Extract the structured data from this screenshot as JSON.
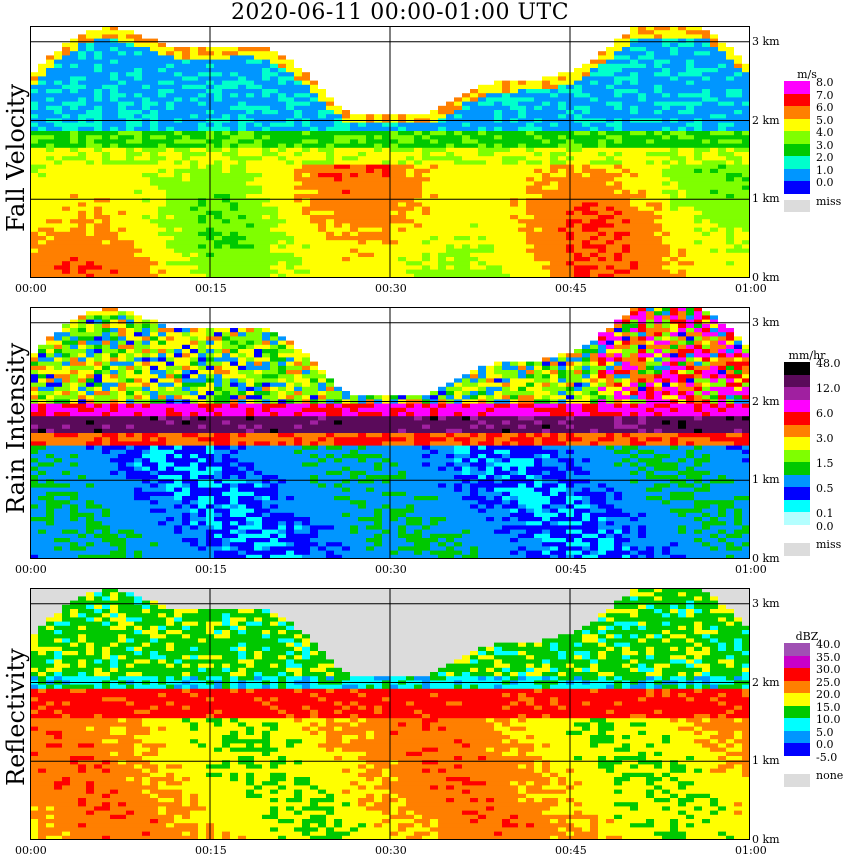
{
  "title": "2020-06-11   00:00-01:00 UTC",
  "time_ticks": [
    "00:00",
    "00:15",
    "00:30",
    "00:45",
    "01:00"
  ],
  "altitude_ticks": [
    "0 km",
    "1 km",
    "2 km",
    "3 km"
  ],
  "panels": [
    {
      "label": "Fall Velocity",
      "unit": "m/s",
      "legend": [
        {
          "label": "8.0",
          "color": "#ff00ff"
        },
        {
          "label": "7.0",
          "color": "#ff0000"
        },
        {
          "label": "6.0",
          "color": "#ff7f00"
        },
        {
          "label": "5.0",
          "color": "#ffff00"
        },
        {
          "label": "4.0",
          "color": "#7fff00"
        },
        {
          "label": "3.0",
          "color": "#00c800"
        },
        {
          "label": "2.0",
          "color": "#00ffcc"
        },
        {
          "label": "1.0",
          "color": "#0096ff"
        },
        {
          "label": "0.0",
          "color": "#0000ff"
        }
      ],
      "missing_label": "miss",
      "missing_color": "#dcdcdc"
    },
    {
      "label": "Rain Intensity",
      "unit": "mm/hr",
      "legend": [
        {
          "label": "48.0",
          "color": "#000000"
        },
        {
          "label": "",
          "color": "#5a0a5a"
        },
        {
          "label": "12.0",
          "color": "#a020a0"
        },
        {
          "label": "",
          "color": "#ff00ff"
        },
        {
          "label": "6.0",
          "color": "#ff0000"
        },
        {
          "label": "",
          "color": "#ff7f00"
        },
        {
          "label": "3.0",
          "color": "#ffff00"
        },
        {
          "label": "",
          "color": "#7fff00"
        },
        {
          "label": "1.5",
          "color": "#00c800"
        },
        {
          "label": "",
          "color": "#0096ff"
        },
        {
          "label": "0.5",
          "color": "#0000ff"
        },
        {
          "label": "",
          "color": "#00ffff"
        },
        {
          "label": "0.1",
          "color": "#b4ffff"
        },
        {
          "label": "0.0",
          "color": "#ffffff"
        }
      ],
      "missing_label": "miss",
      "missing_color": "#dcdcdc"
    },
    {
      "label": "Reflectivity",
      "unit": "dBZ",
      "legend": [
        {
          "label": "40.0",
          "color": "#a050b4"
        },
        {
          "label": "35.0",
          "color": "#c800c8"
        },
        {
          "label": "30.0",
          "color": "#ff0000"
        },
        {
          "label": "25.0",
          "color": "#ff7f00"
        },
        {
          "label": "20.0",
          "color": "#ffff00"
        },
        {
          "label": "15.0",
          "color": "#00c800"
        },
        {
          "label": "10.0",
          "color": "#00ffff"
        },
        {
          "label": "5.0",
          "color": "#0096ff"
        },
        {
          "label": "0.0",
          "color": "#0000ff"
        },
        {
          "label": "-5.0",
          "color": "#ffffff"
        }
      ],
      "missing_label": "none",
      "missing_color": "#dcdcdc"
    }
  ],
  "chart_data": {
    "type": "heatmap",
    "title": "2020-06-11   00:00-01:00 UTC",
    "x_range": [
      "00:00",
      "01:00"
    ],
    "y_range_km": [
      0,
      3.2
    ],
    "grid": true,
    "panels": [
      {
        "name": "Fall Velocity",
        "unit": "m/s",
        "profile": [
          {
            "alt_km": 0.5,
            "value": 5.0
          },
          {
            "alt_km": 1.0,
            "value": 6.0
          },
          {
            "alt_km": 1.4,
            "value": 7.0
          },
          {
            "alt_km": 1.7,
            "value": 4.0
          },
          {
            "alt_km": 1.9,
            "value": 1.0
          },
          {
            "alt_km": 2.5,
            "value": 2.0
          }
        ]
      },
      {
        "name": "Rain Intensity",
        "unit": "mm/hr",
        "profile": [
          {
            "alt_km": 0.5,
            "value": 0.5
          },
          {
            "alt_km": 1.2,
            "value": 0.5
          },
          {
            "alt_km": 1.5,
            "value": 3.0
          },
          {
            "alt_km": 1.7,
            "value": 48.0
          },
          {
            "alt_km": 2.2,
            "value": 6.0
          },
          {
            "alt_km": 2.8,
            "value": 0.5
          }
        ]
      },
      {
        "name": "Reflectivity",
        "unit": "dBZ",
        "profile": [
          {
            "alt_km": 0.5,
            "value": 25.0
          },
          {
            "alt_km": 1.2,
            "value": 25.0
          },
          {
            "alt_km": 1.7,
            "value": 30.0
          },
          {
            "alt_km": 2.1,
            "value": 15.0
          },
          {
            "alt_km": 2.5,
            "value": 20.0
          },
          {
            "alt_km": 3.0,
            "value": 15.0
          }
        ]
      }
    ]
  }
}
